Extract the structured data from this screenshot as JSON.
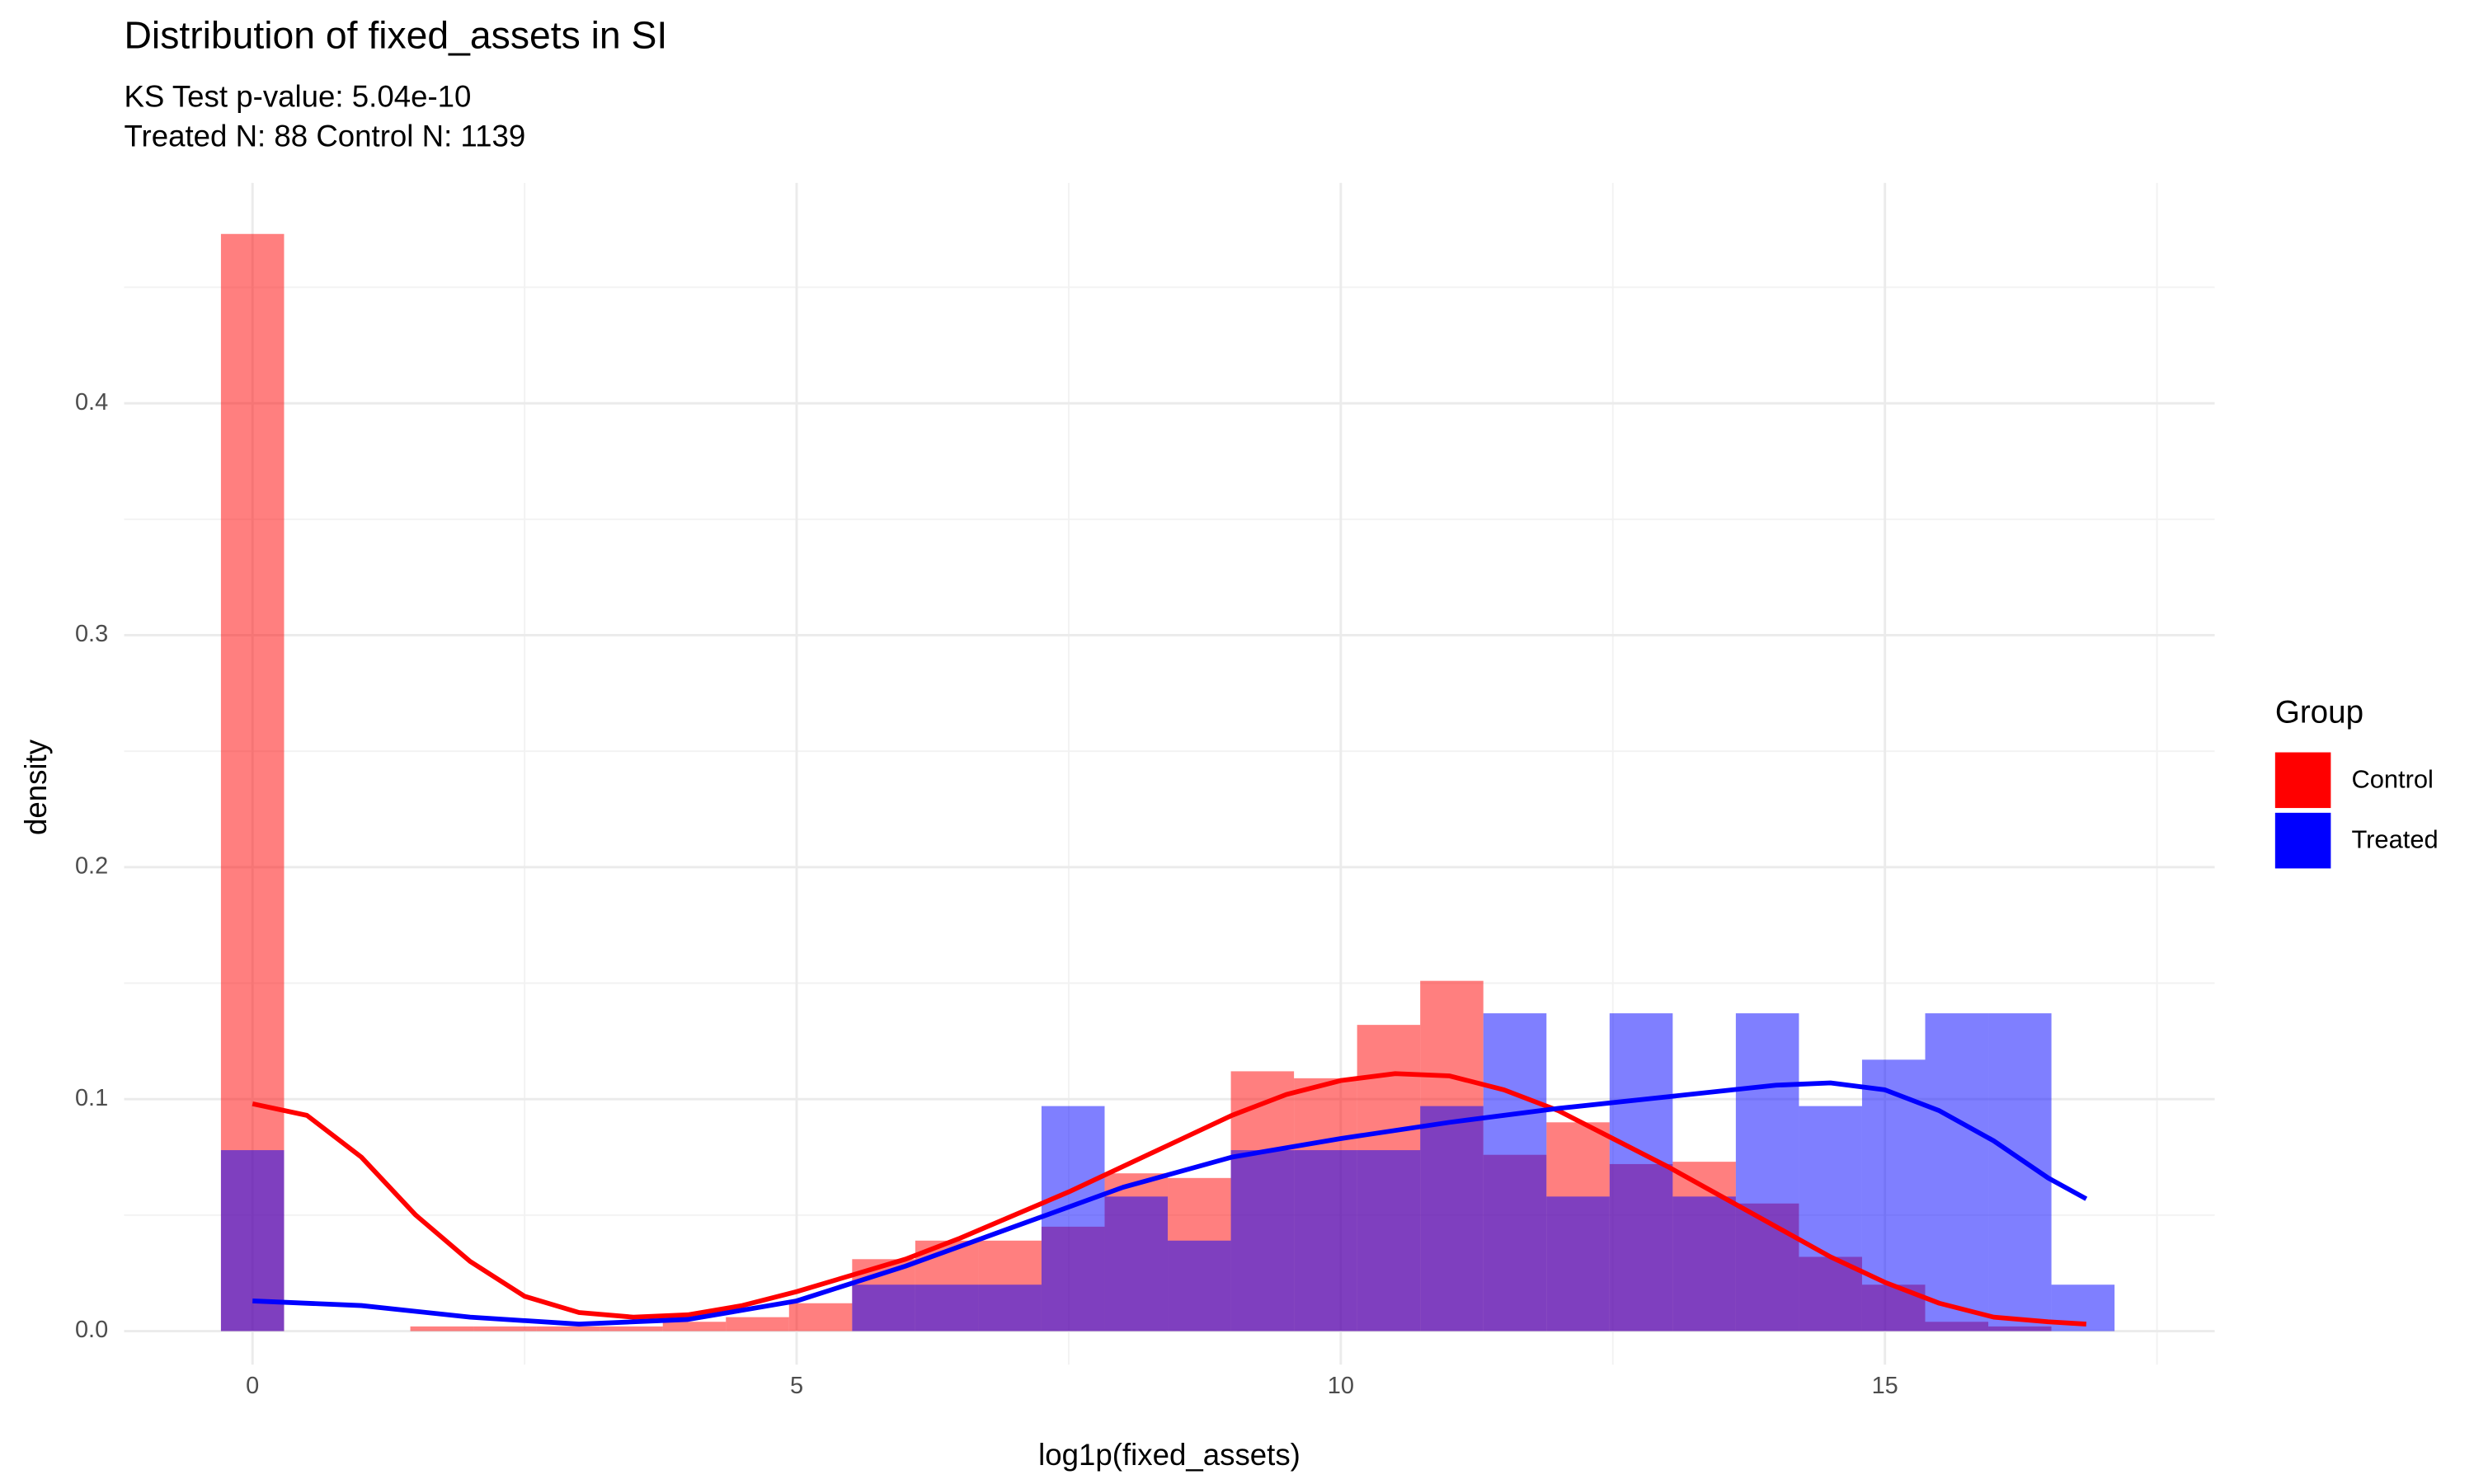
{
  "chart_data": {
    "type": "histogram",
    "title": "Distribution of fixed_assets in SI",
    "subtitle": [
      "KS Test p-value: 5.04e-10",
      "Treated N: 88 Control N: 1139"
    ],
    "x_label": "log1p(fixed_assets)",
    "y_label": "density",
    "legend_title": "Group",
    "legend_position": "right",
    "grid": true,
    "xlim": [
      -1.18,
      18.03
    ],
    "ylim": [
      -0.0145,
      0.495
    ],
    "xticks": [
      0,
      5,
      10,
      15
    ],
    "yticks": [
      {
        "value": 0,
        "label": "0.0"
      },
      0.1,
      0.2,
      0.3,
      0.4
    ],
    "x_minor_ticks": [
      2.5,
      7.5,
      12.5,
      17.5
    ],
    "y_minor_ticks": [
      0.05,
      0.15,
      0.25,
      0.35,
      0.45
    ],
    "bins": [
      -0.29,
      0.29,
      0.87,
      1.45,
      2.03,
      2.61,
      3.19,
      3.77,
      4.35,
      4.93,
      5.51,
      6.09,
      6.67,
      7.25,
      7.83,
      8.41,
      8.99,
      9.57,
      10.15,
      10.73,
      11.31,
      11.89,
      12.47,
      13.05,
      13.63,
      14.21,
      14.79,
      15.37,
      15.95,
      16.53,
      17.11
    ],
    "series": [
      {
        "name": "Control",
        "color": "#ff0000",
        "values": [
          0.473,
          0,
          0,
          0.002,
          0.002,
          0.002,
          0.002,
          0.004,
          0.006,
          0.012,
          0.031,
          0.039,
          0.039,
          0.045,
          0.068,
          0.066,
          0.112,
          0.109,
          0.132,
          0.151,
          0.076,
          0.09,
          0.072,
          0.073,
          0.055,
          0.032,
          0.02,
          0.004,
          0.002,
          0
        ]
      },
      {
        "name": "Treated",
        "color": "#0000ff",
        "values": [
          0.078,
          0,
          0,
          0,
          0,
          0,
          0,
          0,
          0,
          0,
          0.02,
          0.02,
          0.02,
          0.097,
          0.058,
          0.039,
          0.078,
          0.078,
          0.078,
          0.097,
          0.137,
          0.058,
          0.137,
          0.058,
          0.137,
          0.097,
          0.117,
          0.137,
          0.137,
          0.02
        ]
      }
    ],
    "density": [
      {
        "name": "Control",
        "color": "#ff0000",
        "x": [
          0,
          0.5,
          1,
          1.5,
          2,
          2.5,
          3,
          3.5,
          4,
          4.5,
          5,
          5.5,
          6,
          6.5,
          7,
          7.5,
          8,
          8.5,
          9,
          9.5,
          10,
          10.5,
          11,
          11.5,
          12,
          12.5,
          13,
          13.5,
          14,
          14.5,
          15,
          15.5,
          16,
          16.5,
          16.85
        ],
        "values": [
          0.098,
          0.093,
          0.075,
          0.05,
          0.03,
          0.015,
          0.008,
          0.006,
          0.007,
          0.011,
          0.017,
          0.024,
          0.031,
          0.04,
          0.05,
          0.06,
          0.071,
          0.082,
          0.093,
          0.102,
          0.108,
          0.111,
          0.11,
          0.104,
          0.095,
          0.083,
          0.071,
          0.058,
          0.045,
          0.032,
          0.021,
          0.012,
          0.006,
          0.004,
          0.003
        ]
      },
      {
        "name": "Treated",
        "color": "#0000ff",
        "x": [
          0,
          1,
          2,
          3,
          4,
          5,
          6,
          7,
          8,
          9,
          10,
          11,
          12,
          13,
          14,
          14.5,
          15,
          15.5,
          16,
          16.5,
          16.85
        ],
        "values": [
          0.013,
          0.011,
          0.006,
          0.003,
          0.005,
          0.013,
          0.028,
          0.045,
          0.062,
          0.075,
          0.083,
          0.09,
          0.096,
          0.101,
          0.106,
          0.107,
          0.104,
          0.095,
          0.082,
          0.066,
          0.057
        ]
      }
    ]
  }
}
